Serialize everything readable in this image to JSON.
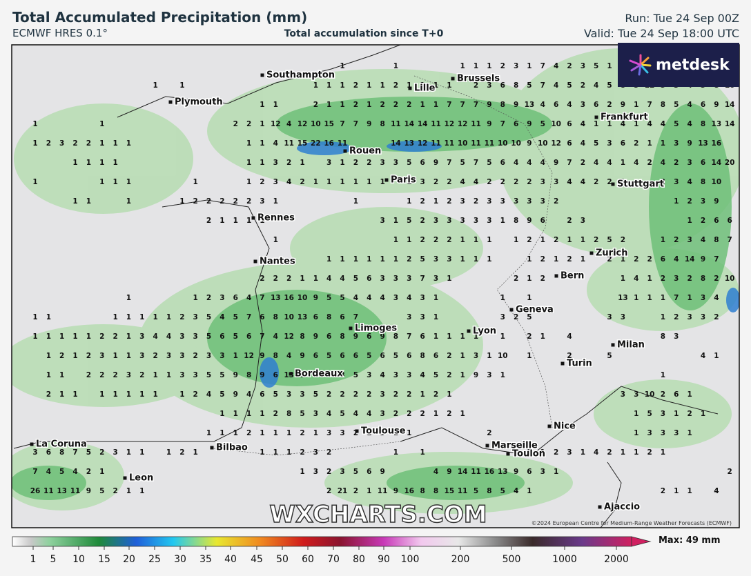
{
  "header": {
    "title": "Total Accumulated Precipitation (mm)",
    "model": "ECMWF HRES 0.1°",
    "subtitle": "Total accumulation since T+0",
    "run": "Run: Tue 24 Sep 00Z",
    "valid": "Valid: Tue 24 Sep 18:00 UTC"
  },
  "logo": "metdesk",
  "watermark": "WXCHARTS.COM",
  "copyright": "©2024 European Centre for Medium-Range Weather Forecasts (ECMWF)",
  "cities": [
    "Southampton",
    "Plymouth",
    "Lille",
    "Brussels",
    "Frankfurt",
    "Rouen",
    "Paris",
    "Stuttgart",
    "Rennes",
    "Zurich",
    "Nantes",
    "Bern",
    "Geneva",
    "Limoges",
    "Lyon",
    "Milan",
    "Turin",
    "Bordeaux",
    "Nice",
    "Toulouse",
    "La Coruna",
    "Bilbao",
    "Marseille",
    "Toulon",
    "Leon",
    "Ajaccio"
  ],
  "colorbar": {
    "labels": [
      1,
      5,
      10,
      15,
      20,
      25,
      30,
      35,
      40,
      45,
      50,
      60,
      70,
      80,
      90,
      100,
      200,
      500,
      1000,
      2000
    ],
    "max": "Max: 49 mm"
  },
  "map": {
    "rows": [
      [
        null,
        null,
        null,
        null,
        null,
        null,
        null,
        null,
        null,
        null,
        null,
        null,
        null,
        null,
        null,
        null,
        null,
        null,
        null,
        null,
        null,
        null,
        null,
        1,
        null,
        null,
        null,
        1,
        null,
        null,
        null,
        null,
        1,
        1,
        1,
        2,
        3,
        1,
        7,
        4,
        2,
        3,
        5,
        1
      ],
      [
        null,
        null,
        null,
        null,
        null,
        null,
        null,
        null,
        null,
        1,
        null,
        1,
        null,
        null,
        null,
        null,
        null,
        null,
        null,
        null,
        null,
        1,
        1,
        1,
        2,
        1,
        1,
        2,
        1,
        1,
        1,
        1,
        null,
        2,
        3,
        6,
        8,
        5,
        7,
        4,
        5,
        2,
        4,
        5,
        8,
        5,
        12,
        5,
        3,
        4,
        5,
        8,
        10
      ],
      [
        null,
        null,
        null,
        null,
        null,
        null,
        null,
        null,
        null,
        null,
        null,
        null,
        null,
        null,
        null,
        null,
        null,
        1,
        1,
        null,
        null,
        2,
        1,
        1,
        2,
        1,
        2,
        2,
        2,
        1,
        1,
        7,
        7,
        7,
        9,
        8,
        9,
        13,
        4,
        6,
        4,
        3,
        6,
        2,
        9,
        1,
        7,
        8,
        5,
        4,
        6,
        9,
        14,
        14
      ],
      [
        1,
        null,
        null,
        null,
        null,
        1,
        null,
        null,
        null,
        null,
        null,
        null,
        null,
        null,
        null,
        2,
        2,
        1,
        12,
        4,
        12,
        10,
        15,
        7,
        7,
        9,
        8,
        11,
        14,
        14,
        11,
        12,
        12,
        11,
        9,
        7,
        6,
        9,
        5,
        10,
        6,
        4,
        1,
        1,
        4,
        1,
        4,
        4,
        5,
        4,
        8,
        13,
        14
      ],
      [
        1,
        2,
        3,
        2,
        2,
        1,
        1,
        1,
        null,
        null,
        null,
        null,
        null,
        null,
        null,
        null,
        1,
        1,
        4,
        11,
        15,
        22,
        16,
        11,
        null,
        null,
        null,
        14,
        13,
        12,
        11,
        11,
        10,
        11,
        11,
        10,
        10,
        9,
        10,
        12,
        6,
        4,
        5,
        3,
        6,
        2,
        1,
        1,
        3,
        9,
        13,
        16
      ],
      [
        null,
        null,
        null,
        1,
        1,
        1,
        1,
        null,
        null,
        null,
        null,
        null,
        null,
        null,
        null,
        null,
        1,
        1,
        3,
        2,
        1,
        null,
        3,
        1,
        2,
        2,
        3,
        3,
        5,
        6,
        9,
        7,
        5,
        7,
        5,
        6,
        4,
        4,
        4,
        9,
        7,
        2,
        4,
        4,
        1,
        4,
        2,
        4,
        2,
        3,
        6,
        14,
        20
      ],
      [
        1,
        null,
        null,
        null,
        null,
        1,
        1,
        1,
        null,
        null,
        null,
        null,
        1,
        null,
        null,
        null,
        1,
        2,
        3,
        4,
        2,
        1,
        1,
        1,
        1,
        1,
        1,
        null,
        1,
        3,
        2,
        2,
        4,
        4,
        2,
        2,
        2,
        2,
        3,
        3,
        4,
        4,
        2,
        2,
        3,
        null,
        null,
        2,
        3,
        4,
        8,
        10
      ],
      [
        null,
        null,
        null,
        1,
        1,
        null,
        null,
        1,
        null,
        null,
        null,
        1,
        2,
        2,
        2,
        2,
        2,
        3,
        1,
        null,
        null,
        null,
        null,
        null,
        1,
        null,
        null,
        null,
        1,
        2,
        1,
        2,
        3,
        2,
        3,
        3,
        3,
        3,
        3,
        2,
        null,
        null,
        null,
        null,
        null,
        null,
        null,
        null,
        1,
        2,
        3,
        9
      ],
      [
        null,
        null,
        null,
        null,
        null,
        null,
        null,
        null,
        null,
        null,
        null,
        null,
        null,
        2,
        1,
        1,
        1,
        1,
        null,
        null,
        null,
        null,
        null,
        null,
        null,
        null,
        3,
        1,
        5,
        2,
        3,
        3,
        3,
        3,
        3,
        1,
        8,
        9,
        6,
        null,
        2,
        3,
        null,
        null,
        null,
        null,
        null,
        null,
        null,
        1,
        2,
        6,
        6
      ],
      [
        null,
        null,
        null,
        null,
        null,
        null,
        null,
        null,
        null,
        null,
        null,
        null,
        null,
        null,
        null,
        null,
        null,
        null,
        1,
        null,
        null,
        null,
        null,
        null,
        null,
        null,
        null,
        1,
        1,
        2,
        2,
        2,
        1,
        1,
        1,
        null,
        1,
        2,
        1,
        2,
        1,
        1,
        2,
        5,
        2,
        null,
        null,
        1,
        2,
        3,
        4,
        8,
        7,
        6
      ],
      [
        null,
        null,
        null,
        null,
        null,
        null,
        null,
        null,
        null,
        null,
        null,
        null,
        null,
        null,
        null,
        null,
        null,
        null,
        null,
        null,
        null,
        null,
        1,
        1,
        1,
        1,
        1,
        1,
        2,
        5,
        3,
        3,
        1,
        1,
        1,
        null,
        null,
        1,
        2,
        1,
        2,
        1,
        null,
        2,
        1,
        2,
        2,
        6,
        4,
        14,
        9,
        7
      ],
      [
        null,
        null,
        null,
        null,
        null,
        null,
        null,
        null,
        null,
        null,
        null,
        null,
        null,
        null,
        null,
        null,
        null,
        2,
        2,
        2,
        1,
        1,
        4,
        4,
        5,
        6,
        3,
        3,
        3,
        7,
        3,
        1,
        null,
        null,
        null,
        null,
        2,
        1,
        2,
        null,
        null,
        null,
        null,
        null,
        1,
        4,
        1,
        2,
        3,
        2,
        8,
        2,
        10
      ],
      [
        null,
        null,
        null,
        null,
        null,
        null,
        null,
        1,
        null,
        null,
        null,
        null,
        1,
        2,
        3,
        6,
        4,
        7,
        13,
        16,
        10,
        9,
        5,
        5,
        4,
        4,
        4,
        3,
        4,
        3,
        1,
        null,
        null,
        null,
        null,
        1,
        null,
        1,
        null,
        null,
        null,
        null,
        null,
        null,
        13,
        1,
        1,
        1,
        7,
        1,
        3,
        4
      ],
      [
        1,
        1,
        null,
        null,
        null,
        null,
        1,
        1,
        1,
        1,
        1,
        2,
        3,
        5,
        4,
        5,
        7,
        6,
        8,
        10,
        13,
        6,
        8,
        6,
        7,
        null,
        null,
        null,
        3,
        3,
        1,
        null,
        null,
        null,
        null,
        3,
        2,
        5,
        null,
        null,
        null,
        null,
        null,
        3,
        3,
        null,
        null,
        1,
        2,
        3,
        3,
        2
      ],
      [
        1,
        1,
        1,
        1,
        1,
        2,
        2,
        1,
        3,
        4,
        4,
        3,
        3,
        5,
        6,
        5,
        6,
        7,
        4,
        12,
        8,
        9,
        6,
        8,
        9,
        6,
        9,
        8,
        7,
        6,
        1,
        1,
        1,
        1,
        null,
        1,
        null,
        2,
        1,
        null,
        4,
        null,
        null,
        null,
        null,
        null,
        null,
        8,
        3
      ],
      [
        null,
        1,
        2,
        1,
        2,
        3,
        1,
        1,
        3,
        2,
        3,
        3,
        2,
        3,
        3,
        1,
        12,
        9,
        8,
        4,
        9,
        6,
        5,
        6,
        6,
        5,
        6,
        5,
        6,
        8,
        6,
        2,
        1,
        3,
        1,
        10,
        null,
        1,
        null,
        null,
        2,
        null,
        null,
        5,
        null,
        null,
        null,
        null,
        null,
        null,
        4,
        1
      ],
      [
        null,
        1,
        1,
        null,
        2,
        2,
        2,
        3,
        2,
        1,
        1,
        3,
        3,
        5,
        5,
        9,
        8,
        9,
        6,
        13,
        9,
        5,
        5,
        3,
        5,
        3,
        4,
        3,
        3,
        4,
        5,
        2,
        1,
        9,
        3,
        1,
        null,
        null,
        null,
        null,
        null,
        null,
        null,
        null,
        null,
        null,
        null,
        1
      ],
      [
        null,
        2,
        1,
        1,
        null,
        1,
        1,
        1,
        1,
        1,
        null,
        1,
        2,
        4,
        5,
        9,
        4,
        6,
        5,
        3,
        3,
        5,
        2,
        2,
        2,
        2,
        3,
        2,
        2,
        1,
        2,
        1,
        null,
        null,
        null,
        null,
        null,
        null,
        null,
        null,
        null,
        null,
        null,
        null,
        3,
        3,
        10,
        2,
        6,
        1
      ],
      [
        null,
        null,
        null,
        null,
        null,
        null,
        null,
        null,
        null,
        null,
        null,
        null,
        null,
        null,
        1,
        1,
        1,
        1,
        2,
        8,
        5,
        3,
        4,
        5,
        4,
        4,
        3,
        2,
        2,
        2,
        1,
        2,
        1,
        null,
        null,
        null,
        null,
        null,
        null,
        null,
        null,
        null,
        null,
        null,
        null,
        1,
        5,
        3,
        1,
        2,
        1
      ],
      [
        null,
        null,
        null,
        null,
        null,
        null,
        null,
        null,
        null,
        null,
        null,
        null,
        null,
        1,
        1,
        1,
        2,
        1,
        1,
        1,
        2,
        1,
        3,
        3,
        2,
        1,
        3,
        1,
        1,
        null,
        null,
        null,
        null,
        null,
        2,
        null,
        null,
        null,
        null,
        null,
        null,
        null,
        null,
        null,
        null,
        1,
        3,
        3,
        3,
        1
      ],
      [
        3,
        6,
        8,
        7,
        5,
        2,
        3,
        1,
        1,
        null,
        1,
        2,
        1,
        null,
        null,
        null,
        null,
        1,
        1,
        1,
        2,
        3,
        2,
        null,
        null,
        null,
        null,
        1,
        null,
        1,
        null,
        null,
        null,
        null,
        null,
        null,
        null,
        1,
        1,
        2,
        3,
        1,
        4,
        2,
        1,
        1,
        2,
        1
      ],
      [
        7,
        4,
        5,
        4,
        2,
        1,
        null,
        null,
        null,
        null,
        null,
        null,
        null,
        null,
        null,
        null,
        null,
        null,
        null,
        null,
        1,
        3,
        2,
        3,
        5,
        6,
        9,
        null,
        null,
        null,
        4,
        9,
        14,
        11,
        16,
        13,
        9,
        6,
        3,
        1,
        null,
        null,
        null,
        null,
        null,
        null,
        null,
        null,
        null,
        null,
        null,
        null,
        2,
        2
      ],
      [
        26,
        11,
        13,
        11,
        9,
        5,
        2,
        1,
        1,
        null,
        null,
        null,
        null,
        null,
        null,
        null,
        null,
        null,
        null,
        null,
        null,
        null,
        2,
        21,
        2,
        1,
        11,
        9,
        16,
        8,
        8,
        15,
        11,
        5,
        8,
        5,
        4,
        1,
        null,
        null,
        null,
        null,
        null,
        null,
        null,
        null,
        null,
        2,
        1,
        1,
        null,
        4
      ]
    ]
  }
}
